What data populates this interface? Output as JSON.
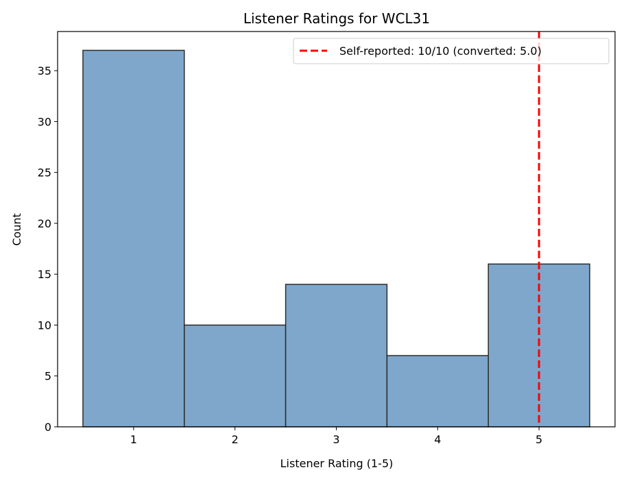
{
  "chart_data": {
    "type": "bar",
    "title": "Listener Ratings for WCL31",
    "xlabel": "Listener Rating (1-5)",
    "ylabel": "Count",
    "categories": [
      "1",
      "2",
      "3",
      "4",
      "5"
    ],
    "x": [
      1,
      2,
      3,
      4,
      5
    ],
    "values": [
      37,
      10,
      14,
      7,
      16
    ],
    "xlim": [
      0.25,
      5.75
    ],
    "ylim": [
      0,
      38.85
    ],
    "xticks": [
      1,
      2,
      3,
      4,
      5
    ],
    "yticks": [
      0,
      5,
      10,
      15,
      20,
      25,
      30,
      35
    ],
    "grid": false,
    "bar_color": "#7ea7cb",
    "edge_color": "#2b2b2b",
    "reference_line": {
      "x": 5.0,
      "color": "#ff0000",
      "style": "dashed",
      "label": "Self-reported: 10/10 (converted: 5.0)"
    },
    "legend_placement": "top-right"
  }
}
